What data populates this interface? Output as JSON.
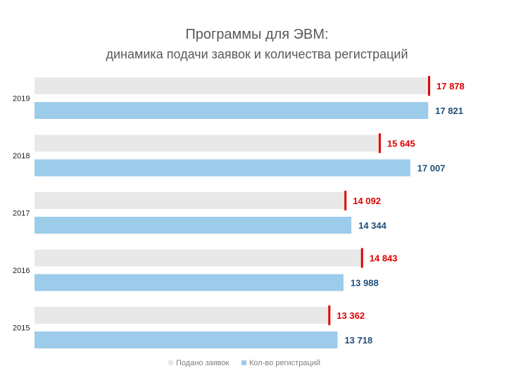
{
  "chart_data": {
    "type": "bar",
    "orientation": "horizontal",
    "title": "Программы для ЭВМ:",
    "subtitle": "динамика подачи заявок и количества регистраций",
    "categories": [
      "2019",
      "2018",
      "2017",
      "2016",
      "2015"
    ],
    "series": [
      {
        "name": "Подано заявок",
        "values": [
          17878,
          15645,
          14092,
          14843,
          13362
        ],
        "labels": [
          "17 878",
          "15 645",
          "14 092",
          "14 843",
          "13 362"
        ],
        "bar_color": "#e8e8e8",
        "marker_color": "#e00000",
        "label_color": "#e00000"
      },
      {
        "name": "Кол-во регистраций",
        "values": [
          17821,
          17007,
          14344,
          13988,
          13718
        ],
        "labels": [
          "17 821",
          "17 007",
          "14 344",
          "13 988",
          "13 718"
        ],
        "bar_color": "#9dcbea",
        "label_color": "#1f4e79"
      }
    ],
    "grid": false,
    "legend_position": "bottom"
  }
}
